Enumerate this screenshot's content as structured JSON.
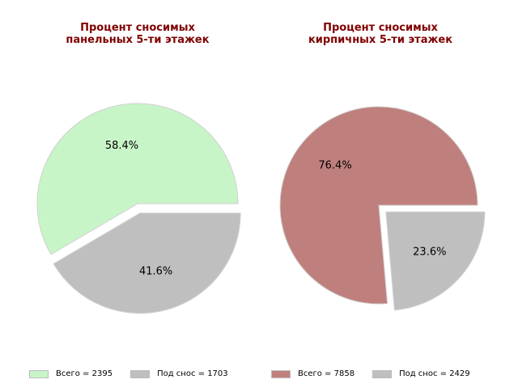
{
  "chart_data": [
    {
      "type": "pie",
      "title": "Процент сносимых\nпанельных 5-ти этажек",
      "labels": [
        "Всего = 2395",
        "Под снос = 1703"
      ],
      "values": [
        2395,
        1703
      ],
      "percent_labels": [
        "58.4%",
        "41.6%"
      ],
      "colors": [
        "#c8f5c8",
        "#bfbfbf"
      ],
      "explode": [
        false,
        true
      ],
      "legend": "bottom"
    },
    {
      "type": "pie",
      "title": "Процент сносимых\nкирпичных 5-ти этажек",
      "labels": [
        "Всего = 7858",
        "Под снос = 2429"
      ],
      "values": [
        7858,
        2429
      ],
      "percent_labels": [
        "76.4%",
        "23.6%"
      ],
      "colors": [
        "#bf807d",
        "#bfbfbf"
      ],
      "explode": [
        false,
        true
      ],
      "legend": "bottom"
    }
  ]
}
